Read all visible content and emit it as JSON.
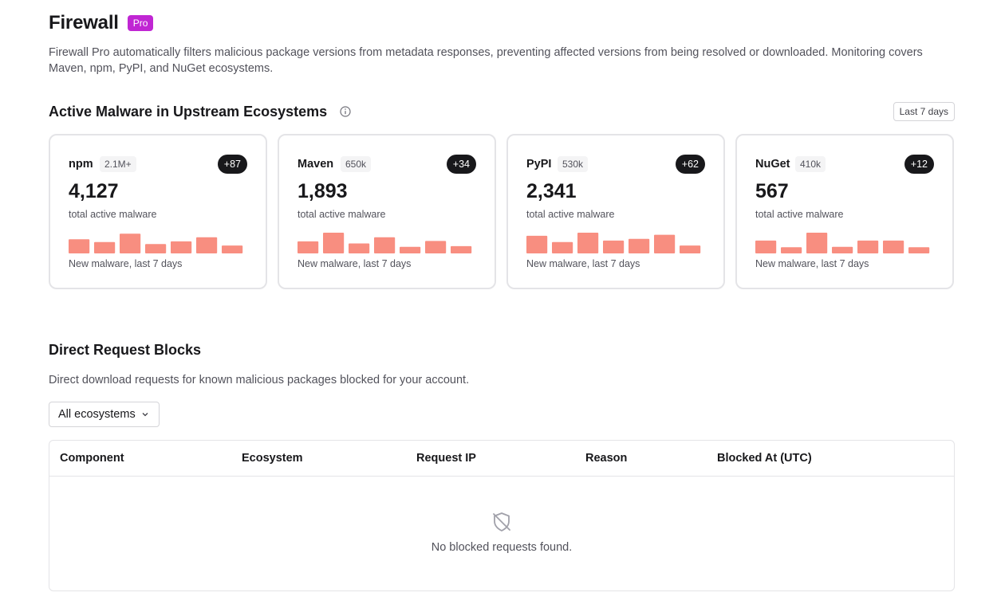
{
  "header": {
    "title": "Firewall",
    "badge": "Pro",
    "description": "Firewall Pro automatically filters malicious package versions from metadata responses, preventing affected versions from being resolved or downloaded. Monitoring covers Maven, npm, PyPI, and NuGet ecosystems."
  },
  "malware_section": {
    "title": "Active Malware in Upstream Ecosystems",
    "info_icon": "info-circle-icon",
    "range_button": "Last 7 days",
    "bar_color": "#f88e80",
    "cards": [
      {
        "name": "npm",
        "size": "2.1M+",
        "delta": "+87",
        "total": "4,127",
        "total_label": "total active malware",
        "caption": "New malware, last 7 days",
        "bars": [
          0.68,
          0.55,
          0.95,
          0.45,
          0.58,
          0.78,
          0.38
        ]
      },
      {
        "name": "Maven",
        "size": "650k",
        "delta": "+34",
        "total": "1,893",
        "total_label": "total active malware",
        "caption": "New malware, last 7 days",
        "bars": [
          0.58,
          1.0,
          0.48,
          0.78,
          0.32,
          0.6,
          0.35
        ]
      },
      {
        "name": "PyPI",
        "size": "530k",
        "delta": "+62",
        "total": "2,341",
        "total_label": "total active malware",
        "caption": "New malware, last 7 days",
        "bars": [
          0.85,
          0.55,
          1.0,
          0.62,
          0.7,
          0.9,
          0.38
        ]
      },
      {
        "name": "NuGet",
        "size": "410k",
        "delta": "+12",
        "total": "567",
        "total_label": "total active malware",
        "caption": "New malware, last 7 days",
        "bars": [
          0.62,
          0.3,
          1.0,
          0.32,
          0.62,
          0.62,
          0.3
        ]
      }
    ]
  },
  "blocks_section": {
    "title": "Direct Request Blocks",
    "description": "Direct download requests for known malicious packages blocked for your account.",
    "filter": {
      "selected": "All ecosystems",
      "icon": "chevron-down-icon"
    },
    "columns": [
      "Component",
      "Ecosystem",
      "Request IP",
      "Reason",
      "Blocked At (UTC)"
    ],
    "empty_state": {
      "icon": "shield-off-icon",
      "text": "No blocked requests found."
    }
  }
}
